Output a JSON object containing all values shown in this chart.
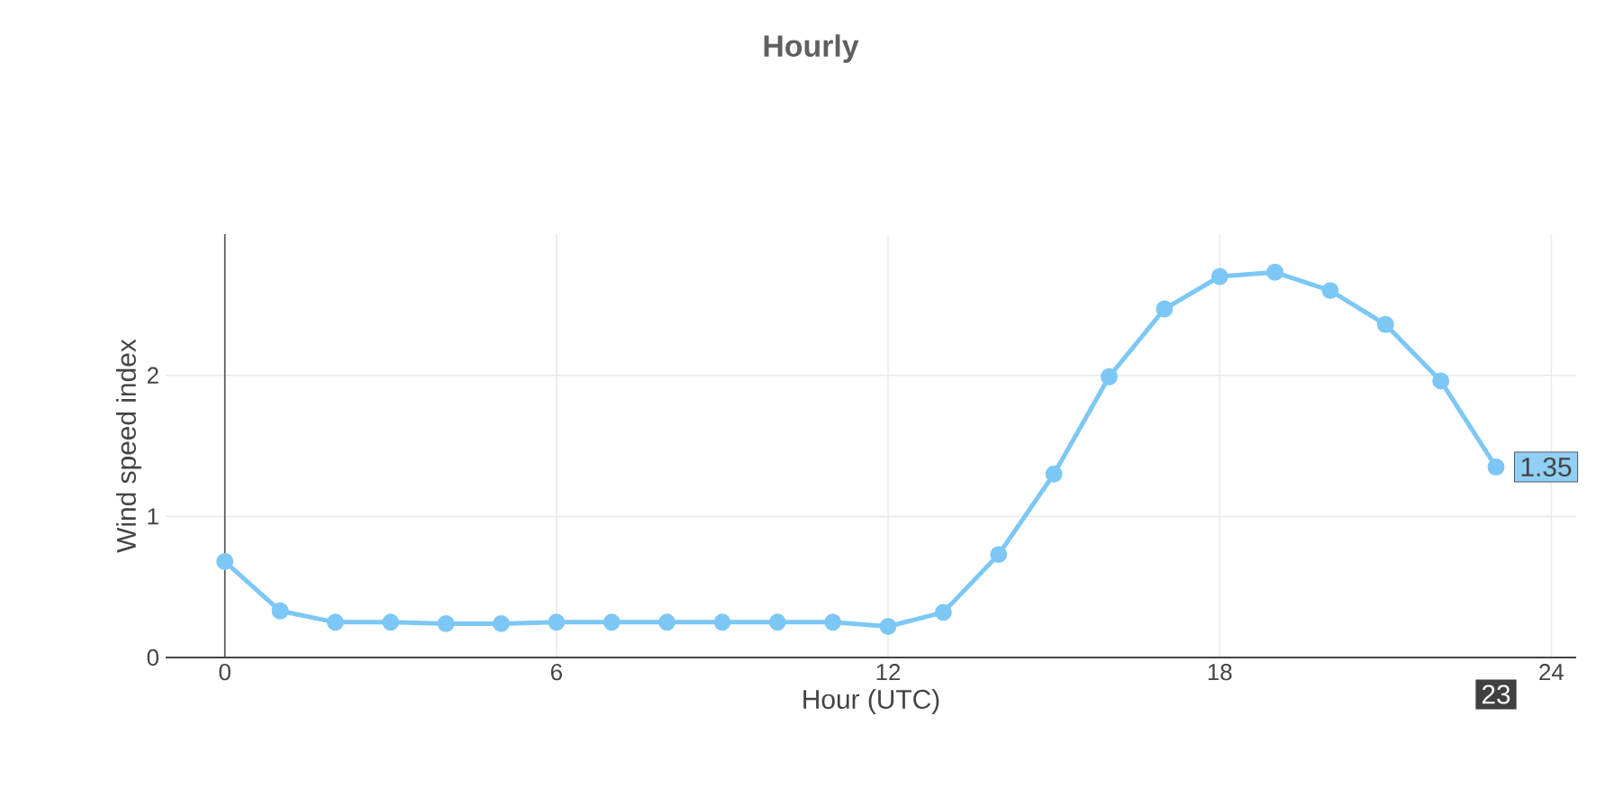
{
  "chart_data": {
    "type": "line",
    "title": "Hourly",
    "xlabel": "Hour (UTC)",
    "ylabel": "Wind speed index",
    "x": [
      0,
      1,
      2,
      3,
      4,
      5,
      6,
      7,
      8,
      9,
      10,
      11,
      12,
      13,
      14,
      15,
      16,
      17,
      18,
      19,
      20,
      21,
      22,
      23
    ],
    "series": [
      {
        "color": "#7cc7f5",
        "values": [
          0.68,
          0.33,
          0.25,
          0.25,
          0.24,
          0.24,
          0.25,
          0.25,
          0.25,
          0.25,
          0.25,
          0.25,
          0.22,
          0.32,
          0.73,
          1.3,
          1.99,
          2.47,
          2.7,
          2.73,
          2.6,
          2.36,
          1.96,
          1.35
        ]
      }
    ],
    "xlim": [
      -1.07,
      24.45
    ],
    "ylim": [
      0,
      3.0
    ],
    "xticks": [
      0,
      6,
      12,
      18,
      24
    ],
    "yticks": [
      0,
      1,
      2
    ],
    "grid": true,
    "marker": "circle",
    "line_style": "solid",
    "annotations": [
      {
        "text": "1.35",
        "x": 23,
        "y": 1.35
      },
      "23"
    ]
  }
}
